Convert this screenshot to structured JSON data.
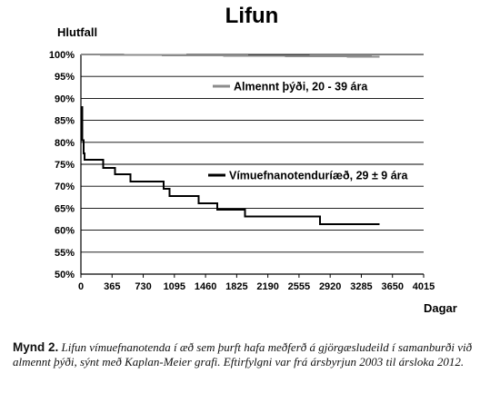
{
  "chart_data": {
    "type": "line",
    "title": "Lifun",
    "ylabel": "Hlutfall",
    "xlabel": "Dagar",
    "ylim": [
      50,
      100
    ],
    "xlim": [
      0,
      4015
    ],
    "y_ticks": [
      "50%",
      "55%",
      "60%",
      "65%",
      "70%",
      "75%",
      "80%",
      "85%",
      "90%",
      "95%",
      "100%"
    ],
    "x_ticks": [
      "0",
      "365",
      "730",
      "1095",
      "1460",
      "1825",
      "2190",
      "2555",
      "2920",
      "3285",
      "3650",
      "4015"
    ],
    "grid": true,
    "series": [
      {
        "name": "Almennt þýði, 20 - 39 ára",
        "color": "#8c8c8c",
        "x": [
          0,
          3500
        ],
        "y": [
          100,
          99.5
        ]
      },
      {
        "name": "Vímuefnanotenduríæð, 29 ± 9 ára",
        "color": "#000000",
        "step": true,
        "x": [
          0,
          15,
          30,
          45,
          260,
          400,
          580,
          970,
          1040,
          1380,
          1600,
          1920,
          2800,
          3500
        ],
        "y": [
          88,
          80.5,
          77.5,
          76,
          74.2,
          72.7,
          71.1,
          69.4,
          67.8,
          66.1,
          64.7,
          63.1,
          61.4,
          61.4
        ]
      }
    ],
    "legend": "inside plot, right"
  },
  "caption": {
    "label": "Mynd 2.",
    "text": "Lifun vímuefnanotenda í æð sem þurft hafa meðferð á gjörgæsludeild í samanburði við almennt þýði, sýnt með Kaplan-Meier grafi. Eftirfylgni var frá ársbyrjun 2003 til ársloka 2012."
  }
}
